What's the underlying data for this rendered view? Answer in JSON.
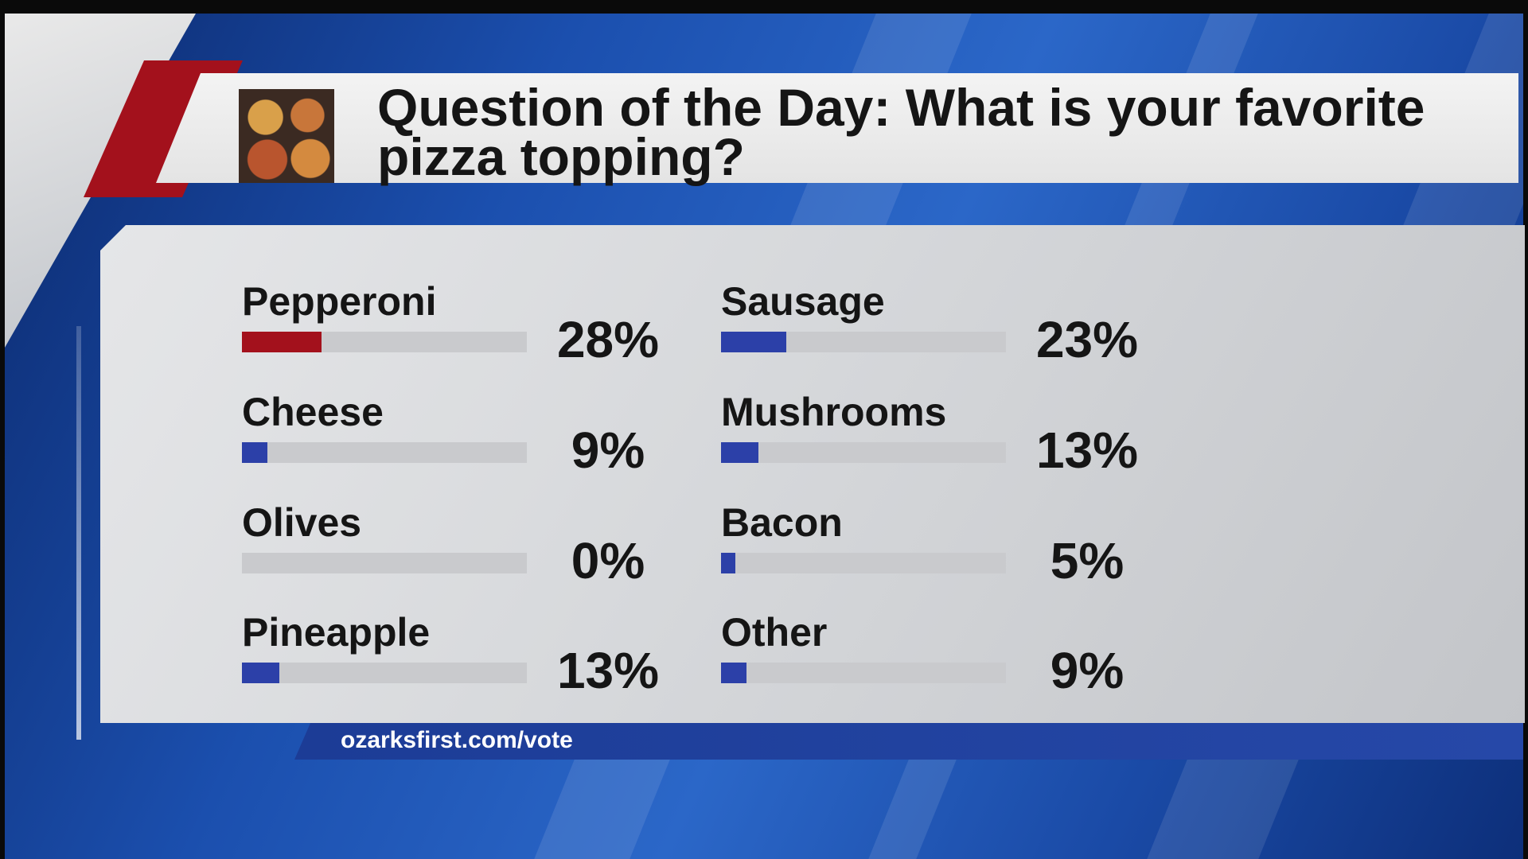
{
  "header": {
    "title": "Question of the Day: What is your favorite pizza topping?"
  },
  "footer": {
    "url": "ozarksfirst.com/vote"
  },
  "colors": {
    "highlight": "#a3111c",
    "bar": "#2c40a8",
    "track": "#c9cacd"
  },
  "chart_data": {
    "type": "bar",
    "categories": [
      "Pepperoni",
      "Cheese",
      "Olives",
      "Pineapple",
      "Sausage",
      "Mushrooms",
      "Bacon",
      "Other"
    ],
    "values": [
      28,
      9,
      0,
      13,
      23,
      13,
      5,
      9
    ],
    "value_labels": [
      "28%",
      "9%",
      "0%",
      "13%",
      "23%",
      "13%",
      "5%",
      "9%"
    ],
    "highlight": "Pepperoni",
    "xlim": [
      0,
      100
    ],
    "legend": "none",
    "grid": false
  }
}
